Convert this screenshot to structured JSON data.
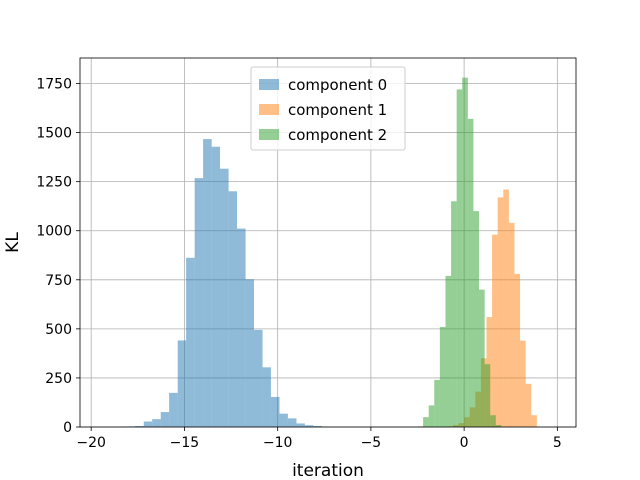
{
  "chart_data": {
    "type": "histogram",
    "title": "",
    "xlabel": "iteration",
    "ylabel": "KL",
    "xlim": [
      -20.6,
      6.0
    ],
    "ylim": [
      0,
      1880
    ],
    "xticks": [
      -20,
      -15,
      -10,
      -5,
      0,
      5
    ],
    "xtick_labels": [
      "−20",
      "−15",
      "−10",
      "−5",
      "0",
      "5"
    ],
    "yticks": [
      0,
      250,
      500,
      750,
      1000,
      1250,
      1500,
      1750
    ],
    "ytick_labels": [
      "0",
      "250",
      "500",
      "750",
      "1000",
      "1250",
      "1500",
      "1750"
    ],
    "grid": true,
    "legend_position": "top-center",
    "series": [
      {
        "name": "component 0",
        "color": "#1f77b4",
        "alpha": 0.5,
        "bins": [
          -18.55,
          -18.09,
          -17.64,
          -17.18,
          -16.73,
          -16.27,
          -15.82,
          -15.36,
          -14.91,
          -14.45,
          -14.0,
          -13.54,
          -13.09,
          -12.63,
          -12.18,
          -11.72,
          -11.27,
          -10.81,
          -10.36,
          -9.9,
          -9.45,
          -8.99,
          -8.54,
          -8.08,
          -7.63,
          -7.17
        ],
        "counts": [
          2,
          3,
          5,
          28,
          40,
          76,
          174,
          441,
          862,
          1268,
          1467,
          1428,
          1316,
          1201,
          1011,
          753,
          495,
          304,
          153,
          68,
          44,
          18,
          9,
          5,
          2
        ]
      },
      {
        "name": "component 1",
        "color": "#ff7f0e",
        "alpha": 0.5,
        "bins": [
          -0.9,
          -0.6,
          -0.3,
          0.0,
          0.3,
          0.6,
          0.9,
          1.2,
          1.5,
          1.8,
          2.1,
          2.4,
          2.7,
          3.0,
          3.3,
          3.6,
          3.9
        ],
        "counts": [
          3,
          10,
          20,
          50,
          100,
          180,
          350,
          560,
          980,
          1170,
          1210,
          1040,
          780,
          440,
          220,
          60
        ]
      },
      {
        "name": "component 2",
        "color": "#2ca02c",
        "alpha": 0.5,
        "bins": [
          -2.5,
          -2.2,
          -1.9,
          -1.6,
          -1.3,
          -1.0,
          -0.7,
          -0.4,
          -0.1,
          0.2,
          0.5,
          0.8,
          1.1,
          1.4,
          1.7,
          2.0
        ],
        "counts": [
          3,
          50,
          110,
          240,
          510,
          770,
          1150,
          1720,
          1780,
          1570,
          1100,
          700,
          320,
          60,
          10
        ]
      }
    ]
  }
}
